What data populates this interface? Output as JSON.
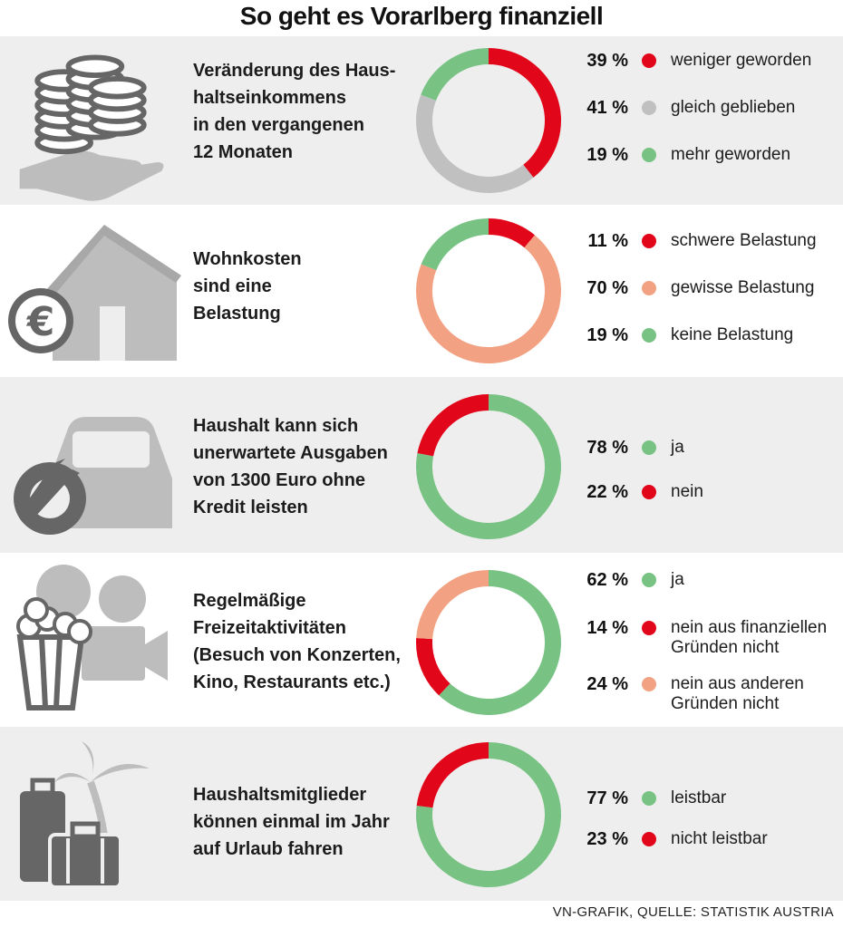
{
  "title": "So geht es Vorarlberg finanziell",
  "source": "VN-GRAFIK, QUELLE: STATISTIK AUSTRIA",
  "colors": {
    "red": "#e2061a",
    "gray": "#c0c0c0",
    "green": "#78c383",
    "salmon": "#f2a283",
    "icon": "#bdbdbd",
    "icon_dark": "#666666"
  },
  "chart_data": [
    {
      "type": "pie",
      "icon": "coins-hand-icon",
      "title_lines": [
        "Veränderung des Haus-",
        "haltseinkommens",
        "in den vergangenen",
        "12 Monaten"
      ],
      "slices": [
        {
          "name": "weniger geworden",
          "value": 39,
          "label": "39 %",
          "color": "#e2061a"
        },
        {
          "name": "gleich geblieben",
          "value": 41,
          "label": "41 %",
          "color": "#c0c0c0"
        },
        {
          "name": "mehr geworden",
          "value": 19,
          "label": "19 %",
          "color": "#78c383"
        }
      ]
    },
    {
      "type": "pie",
      "icon": "house-euro-icon",
      "title_lines": [
        "Wohnkosten",
        "sind eine",
        "Belastung"
      ],
      "slices": [
        {
          "name": "schwere Belastung",
          "value": 11,
          "label": "11 %",
          "color": "#e2061a"
        },
        {
          "name": "gewisse Belastung",
          "value": 70,
          "label": "70 %",
          "color": "#f2a283"
        },
        {
          "name": "keine Belastung",
          "value": 19,
          "label": "19 %",
          "color": "#78c383"
        }
      ]
    },
    {
      "type": "pie",
      "icon": "car-wrench-icon",
      "title_lines": [
        "Haushalt kann sich",
        "unerwartete Ausgaben",
        "von 1300 Euro ohne",
        "Kredit leisten"
      ],
      "slices": [
        {
          "name": "ja",
          "value": 78,
          "label": "78 %",
          "color": "#78c383"
        },
        {
          "name": "nein",
          "value": 22,
          "label": "22 %",
          "color": "#e2061a"
        }
      ]
    },
    {
      "type": "pie",
      "icon": "popcorn-camera-icon",
      "title_lines": [
        "Regelmäßige",
        "Freizeitaktivitäten",
        "(Besuch von Konzerten,",
        "Kino, Restaurants etc.)"
      ],
      "slices": [
        {
          "name": "ja",
          "value": 62,
          "label": "62 %",
          "color": "#78c383"
        },
        {
          "name": "nein aus finanziellen Gründen nicht",
          "value": 14,
          "label": "14 %",
          "color": "#e2061a",
          "name_lines": [
            "nein aus finanziellen",
            "Gründen nicht"
          ]
        },
        {
          "name": "nein aus anderen Gründen nicht",
          "value": 24,
          "label": "24 %",
          "color": "#f2a283",
          "name_lines": [
            "nein aus anderen",
            "Gründen nicht"
          ]
        }
      ]
    },
    {
      "type": "pie",
      "icon": "suitcase-palm-icon",
      "title_lines": [
        "Haushaltsmitglieder",
        "können einmal im Jahr",
        "auf Urlaub fahren"
      ],
      "slices": [
        {
          "name": "leistbar",
          "value": 77,
          "label": "77 %",
          "color": "#78c383"
        },
        {
          "name": "nicht leistbar",
          "value": 23,
          "label": "23 %",
          "color": "#e2061a"
        }
      ]
    }
  ]
}
